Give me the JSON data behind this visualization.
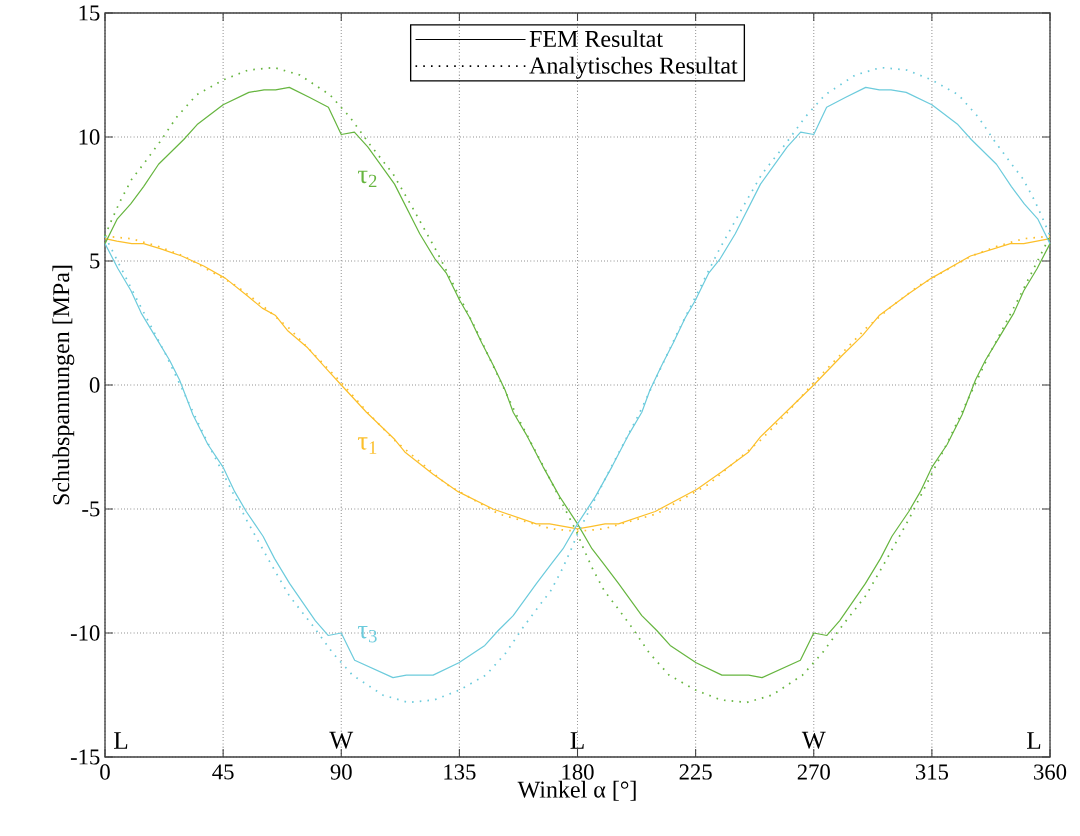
{
  "chart_data": {
    "type": "line",
    "xlabel": "Winkel α [°]",
    "ylabel": "Schubspannungen [MPa]",
    "xlim": [
      0,
      360
    ],
    "xticks": [
      0,
      45,
      90,
      135,
      180,
      225,
      270,
      315,
      360
    ],
    "ylim": [
      -15,
      15
    ],
    "yticks": [
      -15,
      -10,
      -5,
      0,
      5,
      10,
      15
    ],
    "grid": true,
    "marker": "none",
    "series": [
      {
        "name": "τ$_{1}$",
        "color": "#fcbf2a",
        "line_style": "solid",
        "x": [
          0,
          4.5,
          10.2,
          14.7,
          21,
          29.2,
          37.6,
          45.9,
          54.2,
          59.9,
          65,
          69.5,
          77.2,
          84.8,
          90,
          99.6,
          110.4,
          114.2,
          125,
          134.5,
          147.8,
          164.3,
          169.4,
          180,
          185.5,
          190.5,
          195.6,
          209.6,
          225.5,
          235,
          245.2,
          249.6,
          270,
          280.9,
          288.6,
          294.9,
          306.4,
          314.7,
          329.7,
          344.9,
          350,
          360
        ],
        "values": [
          5.9,
          5.8,
          5.7,
          5.7,
          5.5,
          5.2,
          4.8,
          4.3,
          3.6,
          3.1,
          2.8,
          2.2,
          1.5,
          0.6,
          0,
          -1.1,
          -2.2,
          -2.7,
          -3.6,
          -4.3,
          -5.0,
          -5.6,
          -5.6,
          -5.8,
          -5.7,
          -5.6,
          -5.6,
          -5.1,
          -4.2,
          -3.5,
          -2.7,
          -2.1,
          0,
          1.2,
          2.0,
          2.8,
          3.7,
          4.3,
          5.2,
          5.7,
          5.7,
          5.9
        ]
      },
      {
        "name": "τ$_{2}$",
        "color": "#66b53f",
        "line_style": "solid",
        "x": [
          0,
          4.7,
          9.8,
          14.7,
          20.4,
          30,
          35.1,
          45,
          54.8,
          60.6,
          65,
          70.2,
          77.8,
          85.1,
          90,
          95,
          100.1,
          110.3,
          119.9,
          125.6,
          130.1,
          135.2,
          139,
          143.5,
          147.9,
          152.4,
          155.5,
          160.5,
          166.9,
          173.2,
          180,
          185.5,
          189.9,
          195.6,
          204.5,
          210.2,
          215.3,
          225.2,
          235,
          240.1,
          245.2,
          250.3,
          264.9,
          270,
          275,
          279.9,
          289.7,
          295.4,
          299.8,
          306.2,
          310.6,
          315.1,
          320.8,
          326.5,
          331.6,
          335.4,
          341.1,
          346.2,
          350,
          355.1,
          360
        ],
        "values": [
          5.7,
          6.7,
          7.3,
          8.0,
          8.9,
          9.9,
          10.5,
          11.3,
          11.8,
          11.9,
          11.9,
          12.0,
          11.6,
          11.2,
          10.1,
          10.2,
          9.6,
          8.1,
          6.1,
          5.1,
          4.5,
          3.4,
          2.7,
          1.7,
          0.8,
          -0.2,
          -1.1,
          -2.0,
          -3.3,
          -4.5,
          -5.6,
          -6.6,
          -7.2,
          -8.0,
          -9.3,
          -9.9,
          -10.5,
          -11.2,
          -11.7,
          -11.7,
          -11.7,
          -11.8,
          -11.1,
          -10.0,
          -10.1,
          -9.5,
          -8.0,
          -7.0,
          -6.1,
          -5.1,
          -4.3,
          -3.3,
          -2.4,
          -1.2,
          0.2,
          1.0,
          2.0,
          2.9,
          3.8,
          4.7,
          5.7
        ]
      },
      {
        "name": "τ$_{3}$",
        "color": "#6ccbdc",
        "line_style": "solid",
        "x": [
          0,
          4.9,
          9.9,
          13.8,
          18.9,
          24.6,
          28.4,
          33.5,
          39.2,
          44.9,
          49.4,
          53.8,
          60.2,
          64.6,
          70.3,
          80.1,
          85,
          90,
          95.1,
          109.7,
          114.8,
          119.9,
          125,
          134.8,
          144.7,
          149.8,
          155.5,
          164.4,
          170.1,
          174.5,
          180,
          186.8,
          193.1,
          199.5,
          204.5,
          207.6,
          212.1,
          216.5,
          221,
          224.8,
          229.9,
          234.4,
          240.1,
          249.7,
          259.9,
          265,
          270,
          274.9,
          282.2,
          289.8,
          295,
          299.4,
          305.2,
          315,
          324.9,
          330,
          339.6,
          345.3,
          350.2,
          355.3,
          360
        ],
        "values": [
          5.7,
          4.7,
          3.8,
          2.9,
          2.0,
          1.0,
          0.2,
          -1.2,
          -2.4,
          -3.3,
          -4.3,
          -5.1,
          -6.1,
          -7.0,
          -8.0,
          -9.5,
          -10.1,
          -10.0,
          -11.1,
          -11.8,
          -11.7,
          -11.7,
          -11.7,
          -11.2,
          -10.5,
          -9.9,
          -9.3,
          -8.0,
          -7.2,
          -6.6,
          -5.6,
          -4.5,
          -3.3,
          -2.0,
          -1.1,
          -0.2,
          0.8,
          1.7,
          2.7,
          3.4,
          4.5,
          5.1,
          6.1,
          8.1,
          9.6,
          10.2,
          10.1,
          11.2,
          11.6,
          12.0,
          11.9,
          11.9,
          11.8,
          11.3,
          10.5,
          9.9,
          8.9,
          8.0,
          7.3,
          6.7,
          5.7
        ]
      },
      {
        "color": "#fcbf2a",
        "line_style": "dotted",
        "x": [
          0,
          10,
          20,
          30,
          40,
          50,
          60,
          70,
          80,
          90,
          100,
          110,
          120,
          130,
          140,
          150,
          160,
          170,
          180,
          190,
          200,
          210,
          220,
          230,
          240,
          250,
          260,
          270,
          280,
          290,
          300,
          310,
          320,
          330,
          340,
          350,
          360
        ],
        "values": [
          6.0,
          5.9,
          5.6,
          5.2,
          4.6,
          4.0,
          3.2,
          2.3,
          1.2,
          0.1,
          -1.1,
          -2.2,
          -3.1,
          -4.0,
          -4.6,
          -5.2,
          -5.5,
          -5.8,
          -5.9,
          -5.8,
          -5.5,
          -5.2,
          -4.6,
          -4.0,
          -3.1,
          -2.2,
          -1.1,
          0.1,
          1.2,
          2.3,
          3.2,
          4.0,
          4.6,
          5.2,
          5.6,
          5.9,
          6.0
        ]
      },
      {
        "color": "#66b53f",
        "line_style": "dotted",
        "x": [
          0,
          1.9,
          5.7,
          10.2,
          14.6,
          20.9,
          27.3,
          34.9,
          45,
          54.6,
          64.5,
          74.2,
          85.7,
          93.3,
          100.9,
          109.8,
          117.4,
          126.3,
          133.9,
          141.5,
          149.1,
          156.7,
          168.1,
          180,
          181.9,
          185.7,
          190.2,
          194.6,
          200.9,
          207.3,
          214.9,
          225,
          234.6,
          244.5,
          254.2,
          265.7,
          273.3,
          280.9,
          289.8,
          297.4,
          306.3,
          313.9,
          321.5,
          329.1,
          336.7,
          348.1,
          360
        ],
        "values": [
          6.0,
          6.5,
          7.4,
          8.3,
          8.9,
          9.8,
          10.8,
          11.7,
          12.3,
          12.7,
          12.8,
          12.5,
          11.7,
          10.8,
          9.7,
          8.5,
          7.1,
          5.4,
          3.8,
          2.2,
          0.5,
          -1.2,
          -3.5,
          -6.0,
          -6.5,
          -7.4,
          -8.3,
          -8.9,
          -9.8,
          -10.8,
          -11.7,
          -12.3,
          -12.7,
          -12.8,
          -12.5,
          -11.7,
          -10.8,
          -9.7,
          -8.5,
          -7.1,
          -5.4,
          -3.8,
          -2.2,
          -0.5,
          1.2,
          3.5,
          6.0
        ]
      },
      {
        "color": "#6ccbdc",
        "line_style": "dotted",
        "x": [
          0,
          11.9,
          23.3,
          30.9,
          38.5,
          46.1,
          53.7,
          62.6,
          70.2,
          79.1,
          86.7,
          94.3,
          105.8,
          115.5,
          125.4,
          135,
          145.1,
          152.7,
          159.1,
          165.4,
          169.8,
          174.3,
          178.1,
          180,
          191.9,
          203.3,
          210.9,
          218.5,
          226.1,
          233.7,
          242.6,
          250.2,
          259.1,
          266.7,
          274.3,
          285.8,
          295.5,
          305.4,
          315,
          325.1,
          332.7,
          339.1,
          345.4,
          349.8,
          354.3,
          358.1,
          360
        ],
        "values": [
          6.0,
          3.5,
          1.2,
          -0.5,
          -2.2,
          -3.8,
          -5.4,
          -7.1,
          -8.5,
          -9.7,
          -10.8,
          -11.7,
          -12.5,
          -12.8,
          -12.7,
          -12.3,
          -11.7,
          -10.8,
          -9.8,
          -8.9,
          -8.3,
          -7.4,
          -6.5,
          -6.0,
          -3.5,
          -1.2,
          0.5,
          2.2,
          3.8,
          5.4,
          7.1,
          8.5,
          9.7,
          10.8,
          11.7,
          12.5,
          12.8,
          12.7,
          12.3,
          11.7,
          10.8,
          9.8,
          8.9,
          8.3,
          7.4,
          6.5,
          6.0
        ]
      }
    ],
    "annotations": [
      "FEM Resultat",
      "Analytisches Resultat",
      "L",
      "W",
      "L",
      "W",
      "L"
    ]
  }
}
